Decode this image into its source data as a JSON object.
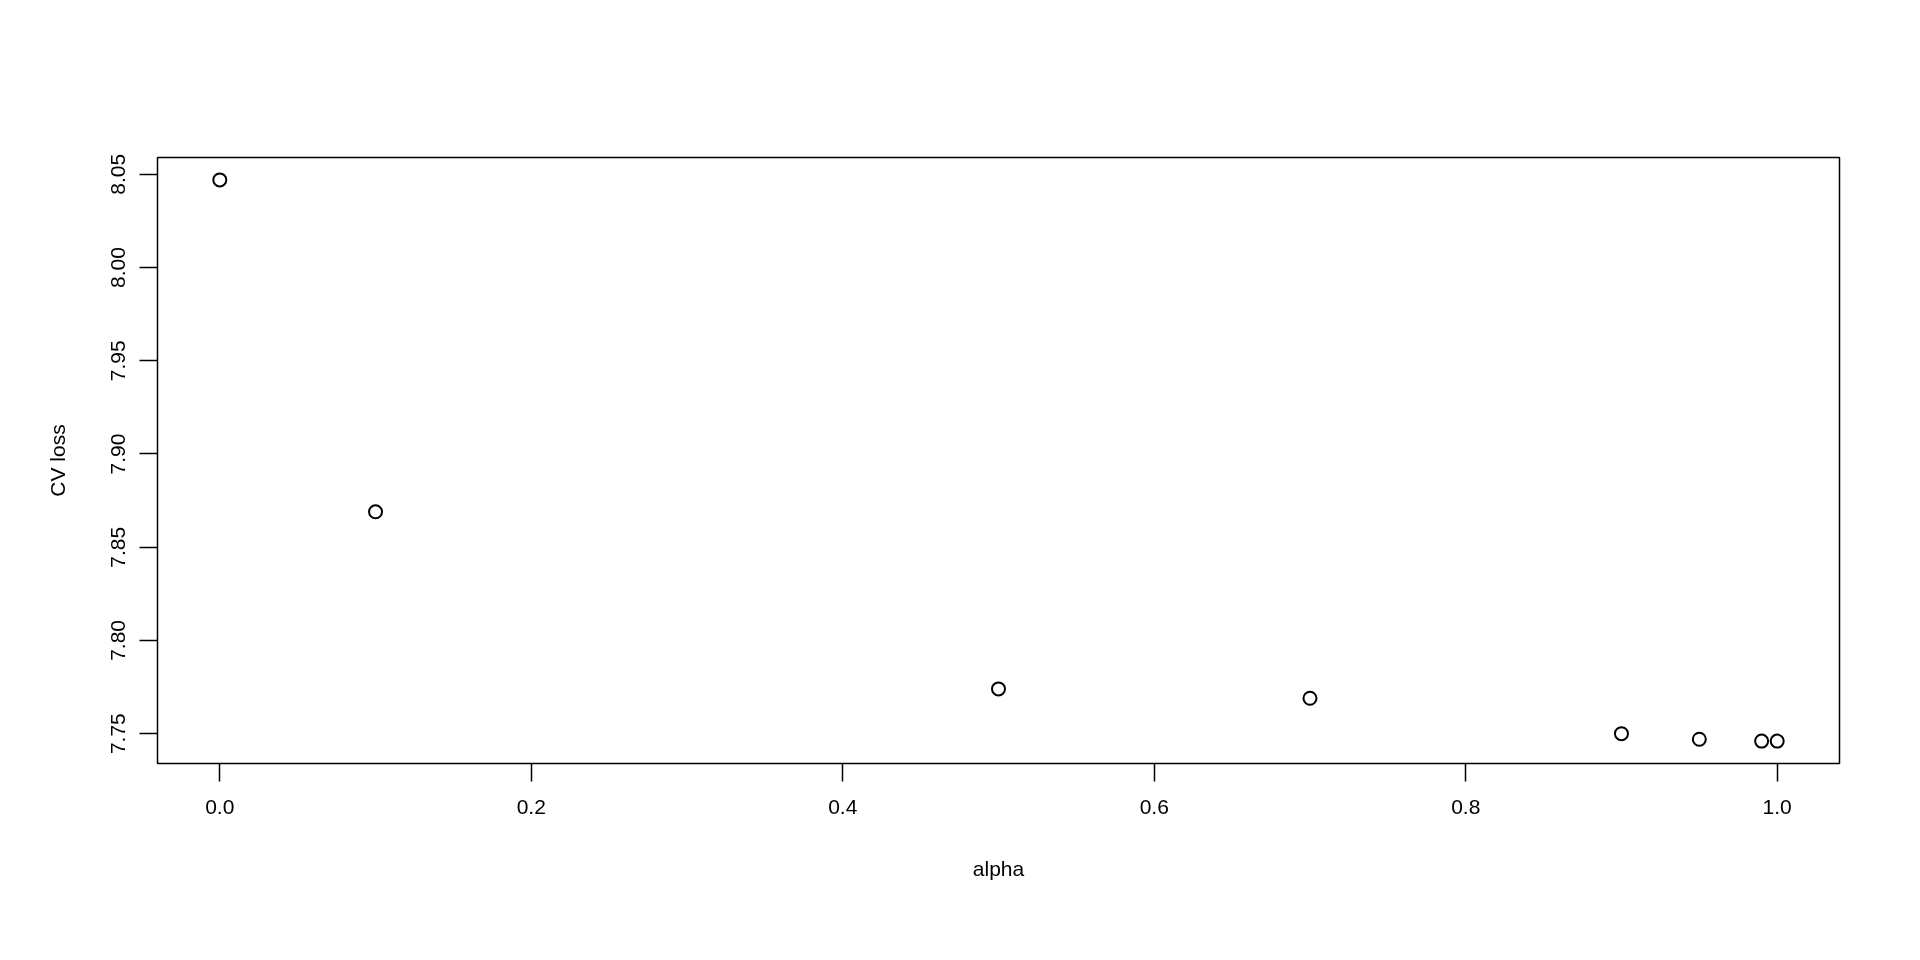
{
  "chart_data": {
    "type": "scatter",
    "xlabel": "alpha",
    "ylabel": "CV loss",
    "x": [
      0,
      0.1,
      0.5,
      0.7,
      0.9,
      0.95,
      0.99,
      1.0
    ],
    "values": [
      8.047,
      7.869,
      7.774,
      7.769,
      7.75,
      7.747,
      7.746,
      7.746
    ],
    "color": "#000000",
    "marker": "circle",
    "grid": false,
    "xlim": [
      -0.04,
      1.04
    ],
    "ylim": [
      7.734,
      8.059
    ],
    "xticks": [
      {
        "value": 0,
        "label": "0.0"
      },
      0.2,
      0.4,
      0.6,
      0.8,
      {
        "value": 1,
        "label": "1.0"
      }
    ],
    "yticks": [
      7.75,
      {
        "value": 7.8,
        "label": "7.80"
      },
      7.85,
      {
        "value": 7.9,
        "label": "7.90"
      },
      7.95,
      {
        "value": 8,
        "label": "8.00"
      },
      8.05
    ]
  }
}
